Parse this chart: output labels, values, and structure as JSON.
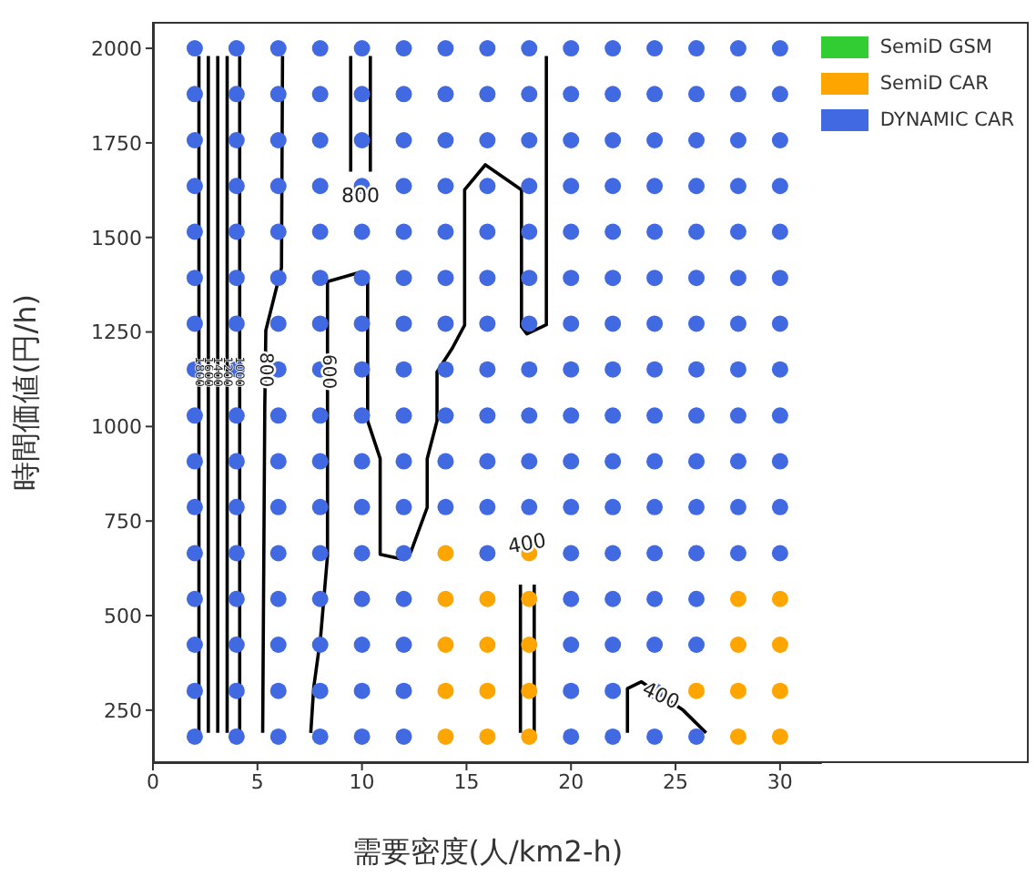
{
  "chart_data": {
    "type": "scatter",
    "xlabel": "需要密度(人/km2-h)",
    "ylabel": "時間価値(円/h)",
    "xlim": [
      0,
      32
    ],
    "xticks": [
      0,
      5,
      10,
      15,
      20,
      25,
      30
    ],
    "ylim": [
      110,
      2070
    ],
    "yticks": [
      250,
      500,
      750,
      1000,
      1250,
      1500,
      1750,
      2000
    ],
    "grid": false,
    "legend": "top right",
    "marker": "circle",
    "series": [
      {
        "name": "SemiD GSM",
        "color": "#32cd32"
      },
      {
        "name": "SemiD CAR",
        "color": "#ffa500",
        "x": [
          14,
          14,
          14,
          14,
          14,
          16,
          16,
          16,
          16,
          18,
          18,
          18,
          18,
          18,
          26,
          28,
          28,
          28,
          28,
          30,
          30,
          30,
          30
        ],
        "values": [
          180,
          301,
          423,
          544,
          665,
          180,
          301,
          423,
          544,
          180,
          301,
          423,
          544,
          665,
          301,
          180,
          301,
          423,
          544,
          180,
          301,
          423,
          544
        ]
      },
      {
        "name": "DYNAMIC CAR",
        "color": "#4169e1",
        "x": [
          2,
          2,
          2,
          2,
          2,
          2,
          2,
          2,
          2,
          2,
          2,
          2,
          2,
          2,
          2,
          2,
          4,
          4,
          4,
          4,
          4,
          4,
          4,
          4,
          4,
          4,
          4,
          4,
          4,
          4,
          4,
          4,
          6,
          6,
          6,
          6,
          6,
          6,
          6,
          6,
          6,
          6,
          6,
          6,
          6,
          6,
          6,
          6,
          8,
          8,
          8,
          8,
          8,
          8,
          8,
          8,
          8,
          8,
          8,
          8,
          8,
          8,
          8,
          8,
          10,
          10,
          10,
          10,
          10,
          10,
          10,
          10,
          10,
          10,
          10,
          10,
          10,
          10,
          10,
          10,
          12,
          12,
          12,
          12,
          12,
          12,
          12,
          12,
          12,
          12,
          12,
          12,
          12,
          12,
          12,
          12,
          20,
          20,
          20,
          20,
          20,
          20,
          20,
          20,
          20,
          20,
          20,
          20,
          20,
          20,
          20,
          20,
          22,
          22,
          22,
          22,
          22,
          22,
          22,
          22,
          22,
          22,
          22,
          22,
          22,
          22,
          22,
          22,
          24,
          24,
          24,
          24,
          24,
          24,
          24,
          24,
          24,
          24,
          24,
          24,
          24,
          24,
          24,
          24,
          14,
          14,
          14,
          14,
          14,
          14,
          14,
          14,
          14,
          14,
          14,
          16,
          16,
          16,
          16,
          16,
          16,
          16,
          16,
          16,
          16,
          16,
          16,
          18,
          18,
          18,
          18,
          18,
          18,
          18,
          18,
          18,
          18,
          18,
          26,
          26,
          26,
          26,
          26,
          26,
          26,
          26,
          26,
          26,
          26,
          26,
          26,
          26,
          26,
          28,
          28,
          28,
          28,
          28,
          28,
          28,
          28,
          28,
          28,
          28,
          28,
          30,
          30,
          30,
          30,
          30,
          30,
          30,
          30,
          30,
          30,
          30,
          30
        ],
        "values": [
          180,
          301,
          423,
          544,
          665,
          787,
          908,
          1029,
          1151,
          1272,
          1393,
          1515,
          1636,
          1757,
          1879,
          2000,
          180,
          301,
          423,
          544,
          665,
          787,
          908,
          1029,
          1151,
          1272,
          1393,
          1515,
          1636,
          1757,
          1879,
          2000,
          180,
          301,
          423,
          544,
          665,
          787,
          908,
          1029,
          1151,
          1272,
          1393,
          1515,
          1636,
          1757,
          1879,
          2000,
          180,
          301,
          423,
          544,
          665,
          787,
          908,
          1029,
          1151,
          1272,
          1393,
          1515,
          1636,
          1757,
          1879,
          2000,
          180,
          301,
          423,
          544,
          665,
          787,
          908,
          1029,
          1151,
          1272,
          1393,
          1515,
          1636,
          1757,
          1879,
          2000,
          180,
          301,
          423,
          544,
          665,
          787,
          908,
          1029,
          1151,
          1272,
          1393,
          1515,
          1636,
          1757,
          1879,
          2000,
          180,
          301,
          423,
          544,
          665,
          787,
          908,
          1029,
          1151,
          1272,
          1393,
          1515,
          1636,
          1757,
          1879,
          2000,
          180,
          301,
          423,
          544,
          665,
          787,
          908,
          1029,
          1151,
          1272,
          1393,
          1515,
          1636,
          1757,
          1879,
          2000,
          180,
          301,
          423,
          544,
          665,
          787,
          908,
          1029,
          1151,
          1272,
          1393,
          1515,
          1636,
          1757,
          1879,
          2000,
          787,
          908,
          1029,
          1151,
          1272,
          1393,
          1515,
          1636,
          1757,
          1879,
          2000,
          665,
          787,
          908,
          1029,
          1151,
          1272,
          1393,
          1515,
          1636,
          1757,
          1879,
          2000,
          787,
          908,
          1029,
          1151,
          1272,
          1393,
          1515,
          1636,
          1757,
          1879,
          2000,
          180,
          423,
          544,
          665,
          787,
          908,
          1029,
          1151,
          1272,
          1393,
          1515,
          1636,
          1757,
          1879,
          2000,
          665,
          787,
          908,
          1029,
          1151,
          1272,
          1393,
          1515,
          1636,
          1757,
          1879,
          2000,
          665,
          787,
          908,
          1029,
          1151,
          1272,
          1393,
          1515,
          1636,
          1757,
          1879,
          2000
        ]
      },
      {
        "type": "line",
        "marker": "none",
        "color": "#000000",
        "x": [
          2.2,
          2.2
        ],
        "values": [
          1980,
          190
        ]
      },
      {
        "type": "line",
        "marker": "none",
        "color": "#000000",
        "x": [
          2.65,
          2.65
        ],
        "values": [
          1980,
          190
        ]
      },
      {
        "type": "line",
        "marker": "none",
        "color": "#000000",
        "x": [
          3.1,
          3.1
        ],
        "values": [
          1980,
          190
        ]
      },
      {
        "type": "line",
        "marker": "none",
        "color": "#000000",
        "x": [
          3.55,
          3.55
        ],
        "values": [
          1980,
          190
        ]
      },
      {
        "type": "line",
        "marker": "none",
        "color": "#000000",
        "x": [
          4.15,
          4.15
        ],
        "values": [
          1980,
          190
        ]
      },
      {
        "type": "line",
        "marker": "none",
        "color": "#000000",
        "x": [
          6.2,
          6.15,
          5.4,
          5.35,
          5.25
        ],
        "values": [
          1980,
          1420,
          1254,
          1050,
          190
        ]
      },
      {
        "type": "line",
        "marker": "none",
        "color": "#000000",
        "x": [
          18.82,
          18.82,
          17.89,
          17.63,
          17.63,
          15.9,
          14.91,
          14.91,
          14.31,
          13.59,
          13.59,
          13.12,
          13.12,
          12.33,
          12.0,
          10.87,
          10.87,
          10.27,
          10.27,
          9.87,
          8.35,
          8.35,
          8.02,
          7.69,
          7.55
        ],
        "values": [
          1980,
          1269,
          1245,
          1264,
          1626,
          1692,
          1626,
          1268,
          1206,
          1144,
          1015,
          915,
          786,
          667,
          648,
          662,
          915,
          1015,
          1387,
          1407,
          1383,
          658,
          443,
          309,
          190
        ]
      },
      {
        "type": "line",
        "marker": "none",
        "color": "#000000",
        "x": [
          9.46,
          9.46
        ],
        "values": [
          1980,
          1674
        ]
      },
      {
        "type": "line",
        "marker": "none",
        "color": "#000000",
        "x": [
          10.4,
          10.4
        ],
        "values": [
          1980,
          1674
        ]
      },
      {
        "type": "line",
        "marker": "none",
        "color": "#000000",
        "x": [
          17.58,
          17.58
        ],
        "values": [
          582,
          190
        ]
      },
      {
        "type": "line",
        "marker": "none",
        "color": "#000000",
        "x": [
          18.24,
          18.24
        ],
        "values": [
          582,
          190
        ]
      },
      {
        "type": "line",
        "marker": "none",
        "color": "#000000",
        "x": [
          22.7,
          22.7,
          23.37,
          25.36,
          26.46
        ],
        "values": [
          190,
          307,
          325,
          250,
          190
        ]
      }
    ],
    "annotations": [
      {
        "text": "1800",
        "x": 2.2,
        "y": 1145
      },
      {
        "text": "1600",
        "x": 2.65,
        "y": 1145
      },
      {
        "text": "1400",
        "x": 3.1,
        "y": 1145
      },
      {
        "text": "1200",
        "x": 3.55,
        "y": 1145
      },
      {
        "text": "1000",
        "x": 4.15,
        "y": 1145
      },
      {
        "text": "800",
        "x": 5.37,
        "y": 1150
      },
      {
        "text": "600",
        "x": 8.35,
        "y": 1145
      },
      {
        "text": "800",
        "x": 9.93,
        "y": 1610
      },
      {
        "text": "400",
        "x": 17.9,
        "y": 690
      },
      {
        "text": "400",
        "x": 24.3,
        "y": 288
      }
    ]
  }
}
